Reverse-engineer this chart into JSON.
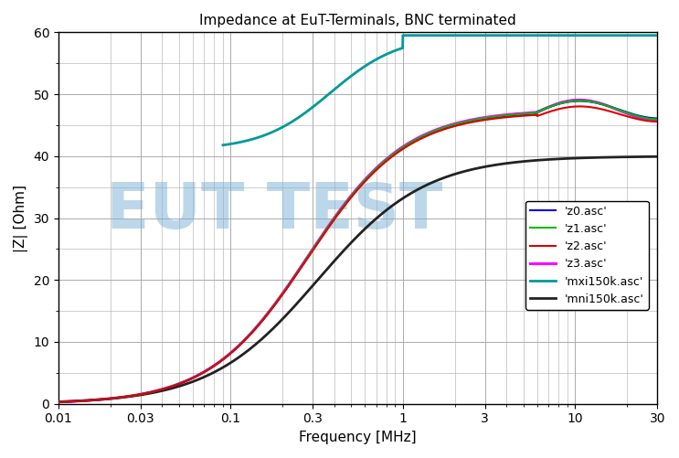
{
  "title": "Impedance at EuT-Terminals, BNC terminated",
  "xlabel": "Frequency [MHz]",
  "ylabel": "|Z| [Ohm]",
  "xlim_log": [
    0.01,
    30
  ],
  "ylim": [
    0,
    60
  ],
  "yticks": [
    0,
    10,
    20,
    30,
    40,
    50,
    60
  ],
  "xticks_log": [
    0.01,
    0.03,
    0.1,
    0.3,
    1,
    3,
    10,
    30
  ],
  "xtick_labels": [
    "0.01",
    "0.03",
    "0.1",
    "0.3",
    "1",
    "3",
    "10",
    "30"
  ],
  "watermark": "EUT TEST",
  "watermark_color": "#7ab0d4",
  "watermark_alpha": 0.5,
  "background_color": "#ffffff",
  "grid_color": "#aaaaaa",
  "series": [
    {
      "label": "'z0.asc'",
      "color": "#0000ee",
      "lw": 1.5
    },
    {
      "label": "'z1.asc'",
      "color": "#00bb00",
      "lw": 1.5
    },
    {
      "label": "'z2.asc'",
      "color": "#dd0000",
      "lw": 1.5
    },
    {
      "label": "'z3.asc'",
      "color": "#ff00ff",
      "lw": 2.2
    },
    {
      "label": "'mxi150k.asc'",
      "color": "#009999",
      "lw": 2.0
    },
    {
      "label": "'mni150k.asc'",
      "color": "#222222",
      "lw": 2.0
    }
  ]
}
